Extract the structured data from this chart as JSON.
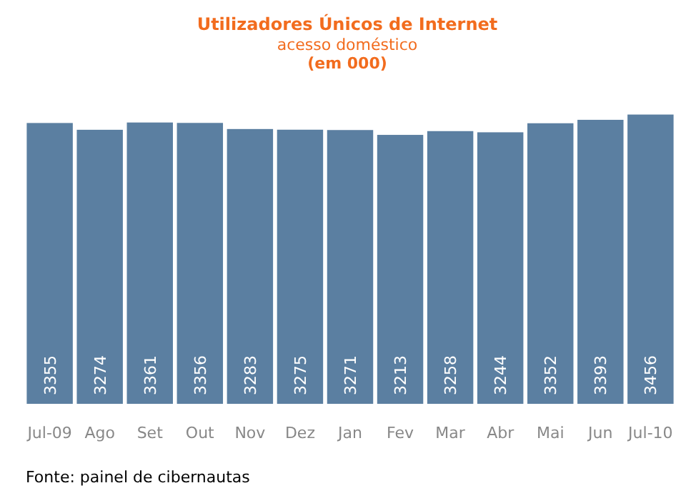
{
  "chart_data": {
    "type": "bar",
    "title": "Utilizadores Únicos de Internet",
    "subtitle": "acesso doméstico",
    "ylabel": "(em 000)",
    "categories": [
      "Jul-09",
      "Ago",
      "Set",
      "Out",
      "Nov",
      "Dez",
      "Jan",
      "Fev",
      "Mar",
      "Abr",
      "Mai",
      "Jun",
      "Jul-10"
    ],
    "values": [
      3355,
      3274,
      3361,
      3356,
      3283,
      3275,
      3271,
      3213,
      3258,
      3244,
      3352,
      3393,
      3456
    ],
    "color": "#5b7fa1",
    "data_labels": true,
    "annotations": [
      "Fonte: painel de cibernautas"
    ]
  }
}
